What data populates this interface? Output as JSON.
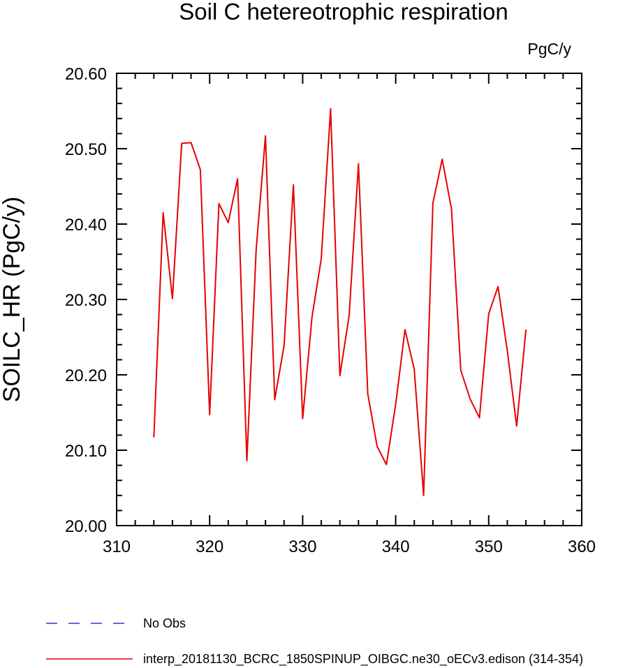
{
  "chart_data": {
    "type": "line",
    "title": "Soil C hetereotrophic respiration",
    "units_label": "PgC/y",
    "ylabel": "SOILC_HR  (PgC/y)",
    "xlabel": "",
    "xlim": [
      310,
      360
    ],
    "ylim": [
      20.0,
      20.6
    ],
    "x_ticks": [
      "310",
      "320",
      "330",
      "340",
      "350",
      "360"
    ],
    "x_tick_values": [
      310,
      320,
      330,
      340,
      350,
      360
    ],
    "y_ticks": [
      "20.00",
      "20.10",
      "20.20",
      "20.30",
      "20.40",
      "20.50",
      "20.60"
    ],
    "y_tick_values": [
      20.0,
      20.1,
      20.2,
      20.3,
      20.4,
      20.5,
      20.6
    ],
    "grid": false,
    "legend_position": "bottom",
    "series": [
      {
        "name": "No Obs",
        "color": "#3333cc",
        "dash": true,
        "x": [],
        "values": []
      },
      {
        "name": "interp_20181130_BCRC_1850SPINUP_OIBGC.ne30_oECv3.edison (314-354)",
        "color": "#e60000",
        "dash": false,
        "x": [
          314,
          315,
          316,
          317,
          318,
          319,
          320,
          321,
          322,
          323,
          324,
          325,
          326,
          327,
          328,
          329,
          330,
          331,
          332,
          333,
          334,
          335,
          336,
          337,
          338,
          339,
          340,
          341,
          342,
          343,
          344,
          345,
          346,
          347,
          348,
          349,
          350,
          351,
          352,
          353,
          354
        ],
        "values": [
          20.117,
          20.415,
          20.301,
          20.507,
          20.508,
          20.472,
          20.147,
          20.427,
          20.402,
          20.46,
          20.086,
          20.366,
          20.517,
          20.167,
          20.239,
          20.452,
          20.142,
          20.276,
          20.354,
          20.553,
          20.199,
          20.279,
          20.48,
          20.175,
          20.105,
          20.081,
          20.161,
          20.26,
          20.207,
          20.04,
          20.428,
          20.486,
          20.42,
          20.206,
          20.168,
          20.143,
          20.281,
          20.317,
          20.232,
          20.132,
          20.26
        ]
      }
    ]
  }
}
